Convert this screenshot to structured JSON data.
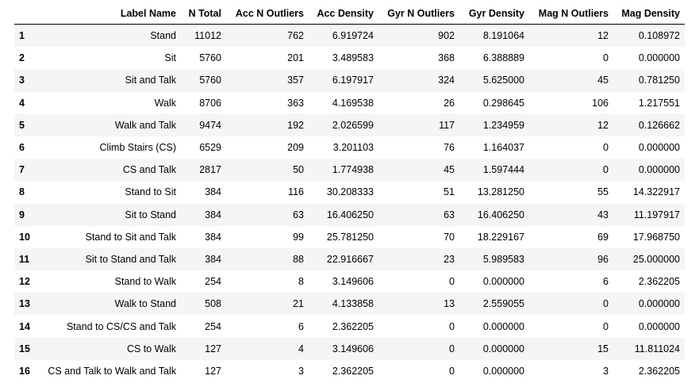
{
  "table": {
    "headers": [
      "",
      "Label Name",
      "N Total",
      "Acc N Outliers",
      "Acc Density",
      "Gyr N Outliers",
      "Gyr Density",
      "Mag N Outliers",
      "Mag Density"
    ],
    "rows": [
      [
        "1",
        "Stand",
        "11012",
        "762",
        "6.919724",
        "902",
        "8.191064",
        "12",
        "0.108972"
      ],
      [
        "2",
        "Sit",
        "5760",
        "201",
        "3.489583",
        "368",
        "6.388889",
        "0",
        "0.000000"
      ],
      [
        "3",
        "Sit and Talk",
        "5760",
        "357",
        "6.197917",
        "324",
        "5.625000",
        "45",
        "0.781250"
      ],
      [
        "4",
        "Walk",
        "8706",
        "363",
        "4.169538",
        "26",
        "0.298645",
        "106",
        "1.217551"
      ],
      [
        "5",
        "Walk and Talk",
        "9474",
        "192",
        "2.026599",
        "117",
        "1.234959",
        "12",
        "0.126662"
      ],
      [
        "6",
        "Climb Stairs (CS)",
        "6529",
        "209",
        "3.201103",
        "76",
        "1.164037",
        "0",
        "0.000000"
      ],
      [
        "7",
        "CS and Talk",
        "2817",
        "50",
        "1.774938",
        "45",
        "1.597444",
        "0",
        "0.000000"
      ],
      [
        "8",
        "Stand to Sit",
        "384",
        "116",
        "30.208333",
        "51",
        "13.281250",
        "55",
        "14.322917"
      ],
      [
        "9",
        "Sit to Stand",
        "384",
        "63",
        "16.406250",
        "63",
        "16.406250",
        "43",
        "11.197917"
      ],
      [
        "10",
        "Stand to Sit and Talk",
        "384",
        "99",
        "25.781250",
        "70",
        "18.229167",
        "69",
        "17.968750"
      ],
      [
        "11",
        "Sit to Stand and Talk",
        "384",
        "88",
        "22.916667",
        "23",
        "5.989583",
        "96",
        "25.000000"
      ],
      [
        "12",
        "Stand to Walk",
        "254",
        "8",
        "3.149606",
        "0",
        "0.000000",
        "6",
        "2.362205"
      ],
      [
        "13",
        "Walk to Stand",
        "508",
        "21",
        "4.133858",
        "13",
        "2.559055",
        "0",
        "0.000000"
      ],
      [
        "14",
        "Stand to CS/CS and Talk",
        "254",
        "6",
        "2.362205",
        "0",
        "0.000000",
        "0",
        "0.000000"
      ],
      [
        "15",
        "CS to Walk",
        "127",
        "4",
        "3.149606",
        "0",
        "0.000000",
        "15",
        "11.811024"
      ],
      [
        "16",
        "CS and Talk to Walk and Talk",
        "127",
        "3",
        "2.362205",
        "0",
        "0.000000",
        "3",
        "2.362205"
      ]
    ]
  },
  "style": {
    "stripe_color": "#f5f5f5",
    "rule_color": "#000000"
  }
}
